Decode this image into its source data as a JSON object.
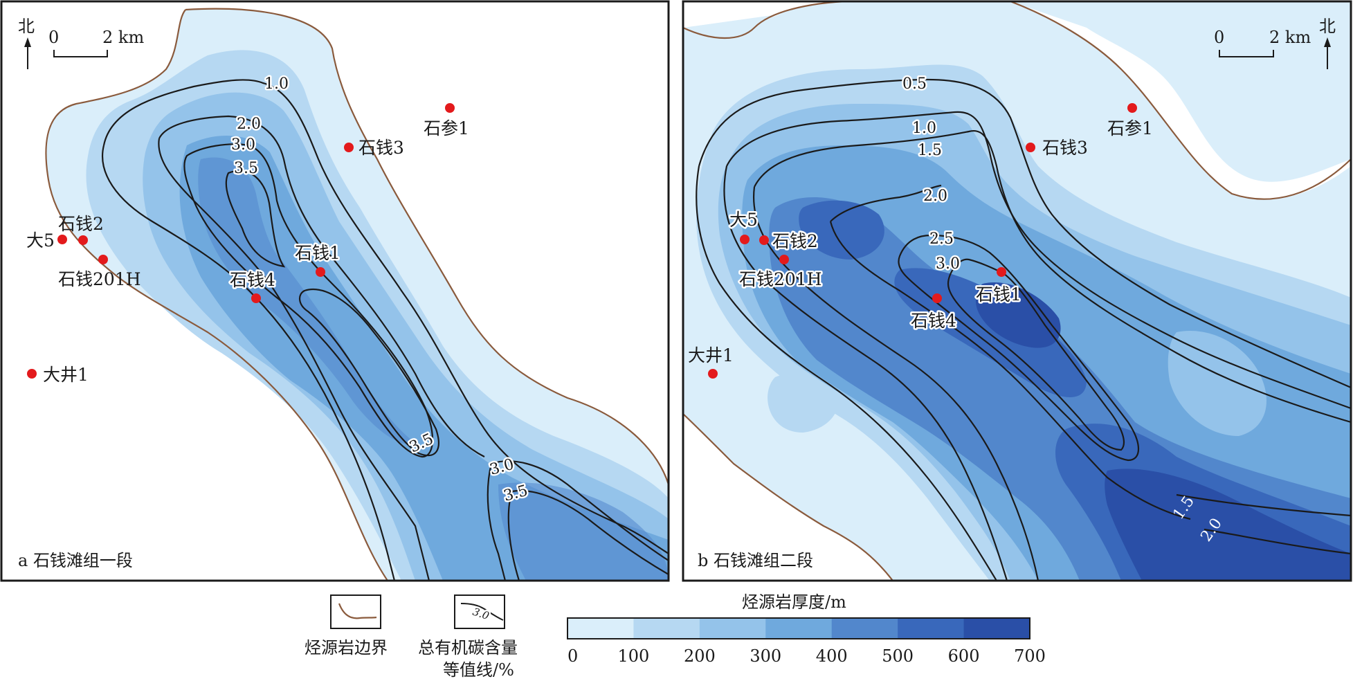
{
  "colors": {
    "boundary": "#8a5a3c",
    "contour": "#1a1a1a",
    "well": "#e31a1c",
    "thickness_scale": [
      "#daeefa",
      "#b6d8f2",
      "#94c3ea",
      "#6fa9dd",
      "#5287cc",
      "#3968bb",
      "#2a4fa7"
    ]
  },
  "panel_a": {
    "caption": "a 石钱滩组一段",
    "north_label": "北",
    "scale_zero": "0",
    "scale_value": "2 km",
    "wells": [
      {
        "name": "石参1"
      },
      {
        "name": "石钱3"
      },
      {
        "name": "石钱2"
      },
      {
        "name": "大5"
      },
      {
        "name": "石钱201H"
      },
      {
        "name": "石钱1"
      },
      {
        "name": "石钱4"
      },
      {
        "name": "大井1"
      }
    ],
    "contour_labels": [
      "1.0",
      "2.0",
      "3.0",
      "3.5",
      "3.5",
      "3.0",
      "3.5"
    ]
  },
  "panel_b": {
    "caption": "b 石钱滩组二段",
    "north_label": "北",
    "scale_zero": "0",
    "scale_value": "2 km",
    "wells": [
      {
        "name": "石参1"
      },
      {
        "name": "石钱3"
      },
      {
        "name": "大5"
      },
      {
        "name": "石钱2"
      },
      {
        "name": "石钱201H"
      },
      {
        "name": "石钱1"
      },
      {
        "name": "石钱4"
      },
      {
        "name": "大井1"
      }
    ],
    "contour_labels": [
      "0.5",
      "1.0",
      "1.5",
      "2.0",
      "2.5",
      "3.0",
      "1.5",
      "2.0"
    ]
  },
  "legend": {
    "boundary_label": "烃源岩边界",
    "toc_label_line1": "总有机碳含量",
    "toc_label_line2": "等值线/%",
    "toc_sample": "3.0",
    "thickness_title": "烃源岩厚度/m",
    "thickness_ticks": [
      "0",
      "100",
      "200",
      "300",
      "400",
      "500",
      "600",
      "700"
    ]
  }
}
